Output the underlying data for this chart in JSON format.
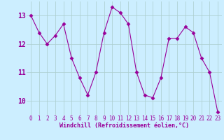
{
  "x": [
    0,
    1,
    2,
    3,
    4,
    5,
    6,
    7,
    8,
    9,
    10,
    11,
    12,
    13,
    14,
    15,
    16,
    17,
    18,
    19,
    20,
    21,
    22,
    23
  ],
  "y": [
    13.0,
    12.4,
    12.0,
    12.3,
    12.7,
    11.5,
    10.8,
    10.2,
    11.0,
    12.4,
    13.3,
    13.1,
    12.7,
    11.0,
    10.2,
    10.1,
    10.8,
    12.2,
    12.2,
    12.6,
    12.4,
    11.5,
    11.0,
    9.6
  ],
  "line_color": "#990099",
  "marker": "D",
  "marker_size": 2.5,
  "bg_color": "#cceeff",
  "grid_color": "#aacccc",
  "xlabel": "Windchill (Refroidissement éolien,°C)",
  "xlabel_color": "#990099",
  "tick_color": "#990099",
  "ylim": [
    9.5,
    13.5
  ],
  "xlim": [
    -0.5,
    23.5
  ],
  "yticks": [
    10,
    11,
    12,
    13
  ],
  "xticks": [
    0,
    1,
    2,
    3,
    4,
    5,
    6,
    7,
    8,
    9,
    10,
    11,
    12,
    13,
    14,
    15,
    16,
    17,
    18,
    19,
    20,
    21,
    22,
    23
  ],
  "xtick_labels": [
    "0",
    "1",
    "2",
    "3",
    "4",
    "5",
    "6",
    "7",
    "8",
    "9",
    "10",
    "11",
    "12",
    "13",
    "14",
    "15",
    "16",
    "17",
    "18",
    "19",
    "20",
    "21",
    "22",
    "23"
  ]
}
